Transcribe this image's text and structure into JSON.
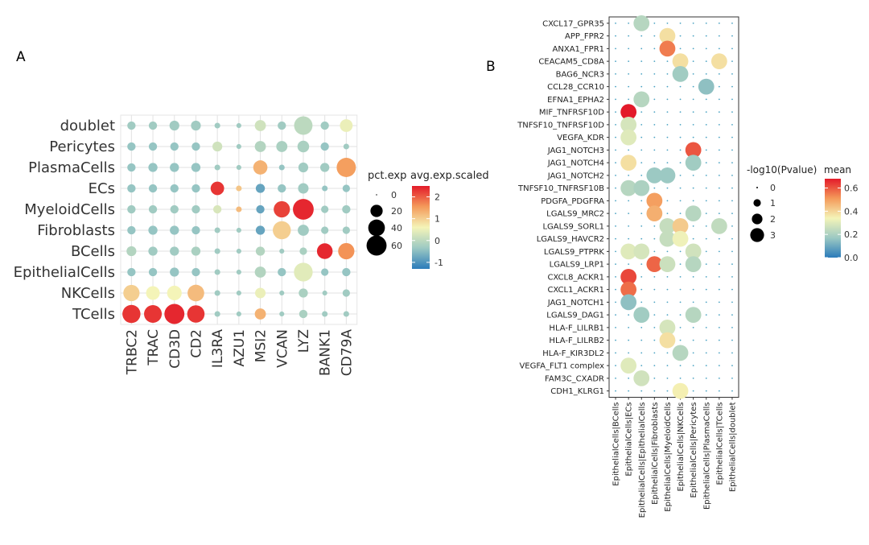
{
  "colors": {
    "scale_low": "#2b7bba",
    "scale_midlow": "#9cc9c3",
    "scale_mid": "#f4f4b8",
    "scale_midhigh": "#f49a5a",
    "scale_high": "#e31a2a",
    "panel_grid": "#e2e2e2",
    "panel_border": "#333333",
    "dot_empty": "#4ba3c3"
  },
  "chart_data": [
    {
      "panel_label": "A",
      "type": "dotplot",
      "categories_x": [
        "TRBC2",
        "TRAC",
        "CD3D",
        "CD2",
        "IL3RA",
        "AZU1",
        "MSI2",
        "VCAN",
        "LYZ",
        "BANK1",
        "CD79A"
      ],
      "categories_y": [
        "doublet",
        "Pericytes",
        "PlasmaCells",
        "ECs",
        "MyeloidCells",
        "Fibroblasts",
        "BCells",
        "EpithelialCells",
        "NKCells",
        "TCells"
      ],
      "legend_size": {
        "title": "pct.exp",
        "labels": [
          "0",
          "20",
          "40",
          "60"
        ],
        "values": [
          0,
          20,
          40,
          60
        ]
      },
      "legend_color": {
        "title": "avg.exp.scaled",
        "labels": [
          "2",
          "1",
          "0",
          "-1"
        ],
        "values": [
          2,
          1,
          0,
          -1
        ],
        "range": [
          -1.3,
          2.5
        ]
      },
      "points": [
        [
          "doublet",
          "TRBC2",
          8,
          -0.3
        ],
        [
          "doublet",
          "TRAC",
          8,
          -0.3
        ],
        [
          "doublet",
          "CD3D",
          12,
          -0.3
        ],
        [
          "doublet",
          "CD2",
          12,
          -0.3
        ],
        [
          "doublet",
          "IL3RA",
          3,
          -0.3
        ],
        [
          "doublet",
          "AZU1",
          2,
          -0.3
        ],
        [
          "doublet",
          "MSI2",
          16,
          0.2
        ],
        [
          "doublet",
          "VCAN",
          8,
          -0.3
        ],
        [
          "doublet",
          "LYZ",
          50,
          0.0
        ],
        [
          "doublet",
          "BANK1",
          8,
          -0.3
        ],
        [
          "doublet",
          "CD79A",
          22,
          0.5
        ],
        [
          "Pericytes",
          "TRBC2",
          8,
          -0.4
        ],
        [
          "Pericytes",
          "TRAC",
          8,
          -0.4
        ],
        [
          "Pericytes",
          "CD3D",
          8,
          -0.4
        ],
        [
          "Pericytes",
          "CD2",
          8,
          -0.4
        ],
        [
          "Pericytes",
          "IL3RA",
          12,
          0.2
        ],
        [
          "Pericytes",
          "AZU1",
          2,
          -0.3
        ],
        [
          "Pericytes",
          "MSI2",
          16,
          -0.1
        ],
        [
          "Pericytes",
          "VCAN",
          16,
          -0.2
        ],
        [
          "Pericytes",
          "LYZ",
          18,
          -0.2
        ],
        [
          "Pericytes",
          "BANK1",
          8,
          -0.4
        ],
        [
          "Pericytes",
          "CD79A",
          3,
          -0.3
        ],
        [
          "PlasmaCells",
          "TRBC2",
          8,
          -0.4
        ],
        [
          "PlasmaCells",
          "TRAC",
          10,
          -0.4
        ],
        [
          "PlasmaCells",
          "CD3D",
          10,
          -0.4
        ],
        [
          "PlasmaCells",
          "CD2",
          10,
          -0.4
        ],
        [
          "PlasmaCells",
          "IL3RA",
          3,
          -0.3
        ],
        [
          "PlasmaCells",
          "AZU1",
          2,
          -0.3
        ],
        [
          "PlasmaCells",
          "MSI2",
          28,
          1.3
        ],
        [
          "PlasmaCells",
          "VCAN",
          3,
          -0.4
        ],
        [
          "PlasmaCells",
          "LYZ",
          12,
          -0.3
        ],
        [
          "PlasmaCells",
          "BANK1",
          10,
          -0.3
        ],
        [
          "PlasmaCells",
          "CD79A",
          55,
          1.5
        ],
        [
          "ECs",
          "TRBC2",
          8,
          -0.4
        ],
        [
          "ECs",
          "TRAC",
          8,
          -0.4
        ],
        [
          "ECs",
          "CD3D",
          8,
          -0.4
        ],
        [
          "ECs",
          "CD2",
          8,
          -0.4
        ],
        [
          "ECs",
          "IL3RA",
          25,
          2.3
        ],
        [
          "ECs",
          "AZU1",
          3,
          1.1
        ],
        [
          "ECs",
          "MSI2",
          10,
          -0.8
        ],
        [
          "ECs",
          "VCAN",
          8,
          -0.4
        ],
        [
          "ECs",
          "LYZ",
          14,
          -0.3
        ],
        [
          "ECs",
          "BANK1",
          3,
          -0.4
        ],
        [
          "ECs",
          "CD79A",
          6,
          -0.4
        ],
        [
          "MyeloidCells",
          "TRBC2",
          8,
          -0.3
        ],
        [
          "MyeloidCells",
          "TRAC",
          8,
          -0.3
        ],
        [
          "MyeloidCells",
          "CD3D",
          8,
          -0.3
        ],
        [
          "MyeloidCells",
          "CD2",
          8,
          -0.3
        ],
        [
          "MyeloidCells",
          "IL3RA",
          8,
          0.3
        ],
        [
          "MyeloidCells",
          "AZU1",
          3,
          1.2
        ],
        [
          "MyeloidCells",
          "MSI2",
          8,
          -0.8
        ],
        [
          "MyeloidCells",
          "VCAN",
          38,
          2.2
        ],
        [
          "MyeloidCells",
          "LYZ",
          65,
          2.4
        ],
        [
          "MyeloidCells",
          "BANK1",
          6,
          -0.3
        ],
        [
          "MyeloidCells",
          "CD79A",
          8,
          -0.3
        ],
        [
          "Fibroblasts",
          "TRBC2",
          8,
          -0.4
        ],
        [
          "Fibroblasts",
          "TRAC",
          10,
          -0.4
        ],
        [
          "Fibroblasts",
          "CD3D",
          10,
          -0.4
        ],
        [
          "Fibroblasts",
          "CD2",
          8,
          -0.4
        ],
        [
          "Fibroblasts",
          "IL3RA",
          3,
          -0.3
        ],
        [
          "Fibroblasts",
          "AZU1",
          2,
          -0.3
        ],
        [
          "Fibroblasts",
          "MSI2",
          10,
          -0.8
        ],
        [
          "Fibroblasts",
          "VCAN",
          48,
          1.0
        ],
        [
          "Fibroblasts",
          "LYZ",
          16,
          -0.3
        ],
        [
          "Fibroblasts",
          "BANK1",
          6,
          -0.3
        ],
        [
          "Fibroblasts",
          "CD79A",
          6,
          -0.3
        ],
        [
          "BCells",
          "TRBC2",
          12,
          -0.1
        ],
        [
          "BCells",
          "TRAC",
          10,
          -0.3
        ],
        [
          "BCells",
          "CD3D",
          10,
          -0.3
        ],
        [
          "BCells",
          "CD2",
          10,
          -0.2
        ],
        [
          "BCells",
          "IL3RA",
          3,
          -0.3
        ],
        [
          "BCells",
          "AZU1",
          2,
          -0.3
        ],
        [
          "BCells",
          "MSI2",
          10,
          -0.1
        ],
        [
          "BCells",
          "VCAN",
          2,
          -0.3
        ],
        [
          "BCells",
          "LYZ",
          6,
          -0.2
        ],
        [
          "BCells",
          "BANK1",
          35,
          2.4
        ],
        [
          "BCells",
          "CD79A",
          38,
          1.6
        ],
        [
          "EpithelialCells",
          "TRBC2",
          8,
          -0.4
        ],
        [
          "EpithelialCells",
          "TRAC",
          8,
          -0.4
        ],
        [
          "EpithelialCells",
          "CD3D",
          10,
          -0.4
        ],
        [
          "EpithelialCells",
          "CD2",
          8,
          -0.4
        ],
        [
          "EpithelialCells",
          "IL3RA",
          3,
          -0.3
        ],
        [
          "EpithelialCells",
          "AZU1",
          2,
          -0.3
        ],
        [
          "EpithelialCells",
          "MSI2",
          16,
          -0.1
        ],
        [
          "EpithelialCells",
          "VCAN",
          8,
          -0.4
        ],
        [
          "EpithelialCells",
          "LYZ",
          52,
          0.4
        ],
        [
          "EpithelialCells",
          "BANK1",
          6,
          -0.4
        ],
        [
          "EpithelialCells",
          "CD79A",
          8,
          -0.4
        ],
        [
          "NKCells",
          "TRBC2",
          38,
          1.0
        ],
        [
          "NKCells",
          "TRAC",
          26,
          0.6
        ],
        [
          "NKCells",
          "CD3D",
          30,
          0.6
        ],
        [
          "NKCells",
          "CD2",
          40,
          1.2
        ],
        [
          "NKCells",
          "IL3RA",
          3,
          -0.3
        ],
        [
          "NKCells",
          "AZU1",
          2,
          -0.3
        ],
        [
          "NKCells",
          "MSI2",
          14,
          0.5
        ],
        [
          "NKCells",
          "VCAN",
          2,
          -0.3
        ],
        [
          "NKCells",
          "LYZ",
          10,
          -0.2
        ],
        [
          "NKCells",
          "BANK1",
          2,
          -0.3
        ],
        [
          "NKCells",
          "CD79A",
          6,
          -0.3
        ],
        [
          "TCells",
          "TRBC2",
          48,
          2.3
        ],
        [
          "TCells",
          "TRAC",
          46,
          2.3
        ],
        [
          "TCells",
          "CD3D",
          60,
          2.4
        ],
        [
          "TCells",
          "CD2",
          44,
          2.3
        ],
        [
          "TCells",
          "IL3RA",
          3,
          -0.3
        ],
        [
          "TCells",
          "AZU1",
          2,
          -0.3
        ],
        [
          "TCells",
          "MSI2",
          16,
          1.3
        ],
        [
          "TCells",
          "VCAN",
          2,
          -0.3
        ],
        [
          "TCells",
          "LYZ",
          8,
          -0.2
        ],
        [
          "TCells",
          "BANK1",
          3,
          -0.3
        ],
        [
          "TCells",
          "CD79A",
          3,
          -0.3
        ]
      ]
    },
    {
      "panel_label": "B",
      "type": "dotplot",
      "categories_x": [
        "EpithelialCells|BCells",
        "EpithelialCells|ECs",
        "EpithelialCells|EpithelialCells",
        "EpithelialCells|Fibroblasts",
        "EpithelialCells|MyeloidCells",
        "EpithelialCells|NKCells",
        "EpithelialCells|Pericytes",
        "EpithelialCells|PlasmaCells",
        "EpithelialCells|TCells",
        "EpithelialCells|doublet"
      ],
      "categories_y": [
        "CXCL17_GPR35",
        "APP_FPR2",
        "ANXA1_FPR1",
        "CEACAM5_CD8A",
        "BAG6_NCR3",
        "CCL28_CCR10",
        "EFNA1_EPHA2",
        "MIF_TNFRSF10D",
        "TNFSF10_TNFRSF10D",
        "VEGFA_KDR",
        "JAG1_NOTCH3",
        "JAG1_NOTCH4",
        "JAG1_NOTCH2",
        "TNFSF10_TNFRSF10B",
        "PDGFA_PDGFRA",
        "LGALS9_MRC2",
        "LGALS9_SORL1",
        "LGALS9_HAVCR2",
        "LGALS9_PTPRK",
        "LGALS9_LRP1",
        "CXCL8_ACKR1",
        "CXCL1_ACKR1",
        "JAG1_NOTCH1",
        "LGALS9_DAG1",
        "HLA-F_LILRB1",
        "HLA-F_LILRB2",
        "HLA-F_KIR3DL2",
        "VEGFA_FLT1 complex",
        "FAM3C_CXADR",
        "CDH1_KLRG1"
      ],
      "legend_size": {
        "title": "-log10(Pvalue)",
        "labels": [
          "0",
          "1",
          "2",
          "3"
        ],
        "values": [
          0,
          1,
          2,
          3
        ]
      },
      "legend_color": {
        "title": "mean",
        "labels": [
          "0.6",
          "0.4",
          "0.2",
          "0.0"
        ],
        "values": [
          0.6,
          0.4,
          0.2,
          0.0
        ],
        "range": [
          0.0,
          0.68
        ]
      },
      "points": [
        [
          "CXCL17_GPR35",
          "EpithelialCells|EpithelialCells",
          3,
          0.22
        ],
        [
          "APP_FPR2",
          "EpithelialCells|MyeloidCells",
          3,
          0.38
        ],
        [
          "ANXA1_FPR1",
          "EpithelialCells|MyeloidCells",
          3,
          0.55
        ],
        [
          "CEACAM5_CD8A",
          "EpithelialCells|NKCells",
          3,
          0.38
        ],
        [
          "CEACAM5_CD8A",
          "EpithelialCells|TCells",
          3,
          0.38
        ],
        [
          "BAG6_NCR3",
          "EpithelialCells|NKCells",
          3,
          0.18
        ],
        [
          "CCL28_CCR10",
          "EpithelialCells|PlasmaCells",
          3,
          0.15
        ],
        [
          "EFNA1_EPHA2",
          "EpithelialCells|EpithelialCells",
          3,
          0.22
        ],
        [
          "MIF_TNFRSF10D",
          "EpithelialCells|ECs",
          3,
          0.68
        ],
        [
          "TNFSF10_TNFRSF10D",
          "EpithelialCells|ECs",
          3,
          0.28
        ],
        [
          "VEGFA_KDR",
          "EpithelialCells|ECs",
          3,
          0.3
        ],
        [
          "JAG1_NOTCH3",
          "EpithelialCells|Pericytes",
          3,
          0.6
        ],
        [
          "JAG1_NOTCH4",
          "EpithelialCells|ECs",
          3,
          0.38
        ],
        [
          "JAG1_NOTCH4",
          "EpithelialCells|Pericytes",
          3,
          0.18
        ],
        [
          "JAG1_NOTCH2",
          "EpithelialCells|Fibroblasts",
          3,
          0.17
        ],
        [
          "JAG1_NOTCH2",
          "EpithelialCells|MyeloidCells",
          3,
          0.17
        ],
        [
          "TNFSF10_TNFRSF10B",
          "EpithelialCells|ECs",
          3,
          0.22
        ],
        [
          "TNFSF10_TNFRSF10B",
          "EpithelialCells|EpithelialCells",
          3,
          0.2
        ],
        [
          "PDGFA_PDGFRA",
          "EpithelialCells|Fibroblasts",
          3,
          0.5
        ],
        [
          "LGALS9_MRC2",
          "EpithelialCells|Fibroblasts",
          3,
          0.47
        ],
        [
          "LGALS9_MRC2",
          "EpithelialCells|Pericytes",
          3,
          0.22
        ],
        [
          "LGALS9_SORL1",
          "EpithelialCells|MyeloidCells",
          3,
          0.25
        ],
        [
          "LGALS9_SORL1",
          "EpithelialCells|NKCells",
          3,
          0.42
        ],
        [
          "LGALS9_SORL1",
          "EpithelialCells|TCells",
          3,
          0.24
        ],
        [
          "LGALS9_HAVCR2",
          "EpithelialCells|MyeloidCells",
          3,
          0.25
        ],
        [
          "LGALS9_HAVCR2",
          "EpithelialCells|NKCells",
          3,
          0.33
        ],
        [
          "LGALS9_PTPRK",
          "EpithelialCells|ECs",
          3,
          0.3
        ],
        [
          "LGALS9_PTPRK",
          "EpithelialCells|EpithelialCells",
          3,
          0.28
        ],
        [
          "LGALS9_PTPRK",
          "EpithelialCells|Pericytes",
          3,
          0.27
        ],
        [
          "LGALS9_LRP1",
          "EpithelialCells|Fibroblasts",
          3,
          0.58
        ],
        [
          "LGALS9_LRP1",
          "EpithelialCells|MyeloidCells",
          3,
          0.26
        ],
        [
          "LGALS9_LRP1",
          "EpithelialCells|Pericytes",
          3,
          0.22
        ],
        [
          "CXCL8_ACKR1",
          "EpithelialCells|ECs",
          3,
          0.62
        ],
        [
          "CXCL1_ACKR1",
          "EpithelialCells|ECs",
          3,
          0.57
        ],
        [
          "JAG1_NOTCH1",
          "EpithelialCells|ECs",
          3,
          0.15
        ],
        [
          "LGALS9_DAG1",
          "EpithelialCells|EpithelialCells",
          3,
          0.18
        ],
        [
          "LGALS9_DAG1",
          "EpithelialCells|Pericytes",
          3,
          0.22
        ],
        [
          "HLA-F_LILRB1",
          "EpithelialCells|MyeloidCells",
          3,
          0.28
        ],
        [
          "HLA-F_LILRB2",
          "EpithelialCells|MyeloidCells",
          3,
          0.38
        ],
        [
          "HLA-F_KIR3DL2",
          "EpithelialCells|NKCells",
          3,
          0.22
        ],
        [
          "VEGFA_FLT1 complex",
          "EpithelialCells|ECs",
          3,
          0.3
        ],
        [
          "FAM3C_CXADR",
          "EpithelialCells|EpithelialCells",
          3,
          0.27
        ],
        [
          "CDH1_KLRG1",
          "EpithelialCells|NKCells",
          3,
          0.35
        ]
      ]
    }
  ]
}
